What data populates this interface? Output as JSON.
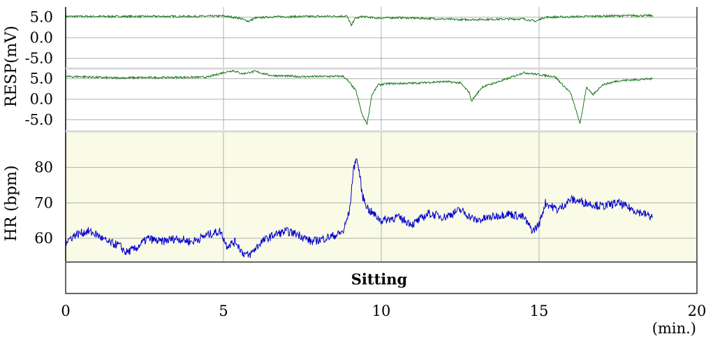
{
  "chart_data": [
    {
      "type": "line",
      "panel": "RESP (trace 1)",
      "ylabel": "RESP(mV)",
      "yticks": [
        "5.0",
        "0.0",
        "-5.0"
      ],
      "ylim": [
        -7.5,
        7.5
      ],
      "xlim": [
        0,
        20
      ],
      "grid": true,
      "background": "#ffffff",
      "series": [
        {
          "color": "#1a7a1a",
          "x": [
            0,
            2,
            4,
            5,
            5.5,
            5.8,
            6.0,
            6.5,
            8.0,
            8.9,
            9.0,
            9.05,
            9.15,
            9.4,
            9.8,
            10.5,
            11.5,
            12.5,
            13.5,
            14.5,
            14.9,
            15.05,
            15.2,
            16,
            17,
            18,
            18.6
          ],
          "y": [
            5.2,
            5.2,
            5.2,
            5.3,
            4.8,
            4.0,
            4.8,
            5.1,
            5.2,
            5.3,
            4.0,
            2.8,
            4.6,
            5.2,
            4.8,
            4.9,
            4.7,
            4.4,
            4.5,
            4.6,
            4.0,
            4.6,
            5.0,
            5.1,
            5.3,
            5.4,
            5.4
          ]
        }
      ]
    },
    {
      "type": "line",
      "panel": "RESP (trace 2)",
      "yticks": [
        "5.0",
        "0.0",
        "-5.0"
      ],
      "ylim": [
        -7.5,
        7.5
      ],
      "xlim": [
        0,
        20
      ],
      "grid": true,
      "background": "#ffffff",
      "series": [
        {
          "color": "#1a7a1a",
          "x": [
            0,
            0.5,
            1.5,
            3,
            4.5,
            5.0,
            5.3,
            5.6,
            6.0,
            6.5,
            7.5,
            8.8,
            9.0,
            9.2,
            9.4,
            9.55,
            9.7,
            9.9,
            10.2,
            11,
            12,
            12.5,
            12.8,
            12.85,
            13.2,
            14,
            14.5,
            15,
            15.5,
            16,
            16.3,
            16.5,
            16.7,
            17,
            17.5,
            18.6
          ],
          "y": [
            5.5,
            5.5,
            5.2,
            5.3,
            5.4,
            6.5,
            7.0,
            6.2,
            6.8,
            5.8,
            5.5,
            5.6,
            4.0,
            2.0,
            -4.0,
            -6.0,
            1.0,
            3.5,
            3.8,
            3.9,
            4.3,
            4.0,
            1.5,
            -0.5,
            3.0,
            5.0,
            6.5,
            6.0,
            5.5,
            1.5,
            -6.0,
            3.0,
            1.0,
            3.5,
            4.5,
            5.0
          ]
        }
      ]
    },
    {
      "type": "line",
      "panel": "HR",
      "ylabel": "HR (bpm)",
      "yticks": [
        "60",
        "70",
        "80"
      ],
      "ylim": [
        53.5,
        90
      ],
      "xlim": [
        0,
        20
      ],
      "xticks": [
        "0",
        "5",
        "10",
        "15",
        "20"
      ],
      "xunit": "(min.)",
      "grid": true,
      "background": "#fafbe6",
      "series": [
        {
          "color": "#0000cc",
          "x": [
            0,
            0.3,
            0.7,
            1.0,
            1.3,
            1.7,
            1.9,
            2.2,
            2.6,
            3.0,
            3.5,
            4.0,
            4.5,
            4.9,
            5.1,
            5.4,
            5.6,
            5.8,
            6.2,
            6.6,
            7.0,
            7.4,
            7.8,
            8.2,
            8.6,
            8.8,
            9.0,
            9.1,
            9.2,
            9.3,
            9.4,
            9.6,
            10.0,
            10.5,
            11.0,
            11.5,
            12.0,
            12.5,
            13.0,
            13.5,
            14.0,
            14.5,
            14.8,
            15.0,
            15.2,
            15.6,
            16.0,
            16.5,
            17.0,
            17.5,
            18.0,
            18.3,
            18.6
          ],
          "y": [
            59,
            61,
            62,
            61,
            59,
            58,
            56,
            57,
            60,
            59,
            60,
            59,
            61,
            62,
            58,
            59,
            56,
            55,
            59,
            61,
            62,
            61,
            59,
            60,
            61,
            62,
            68,
            78,
            83,
            79,
            72,
            68,
            65,
            66,
            64,
            67,
            66,
            68,
            65,
            66,
            67,
            66,
            62,
            64,
            70,
            68,
            71,
            70,
            69,
            70,
            68,
            67,
            66
          ]
        }
      ]
    }
  ],
  "phase_bar": {
    "label": "Sitting",
    "start": 0,
    "end": 20
  }
}
